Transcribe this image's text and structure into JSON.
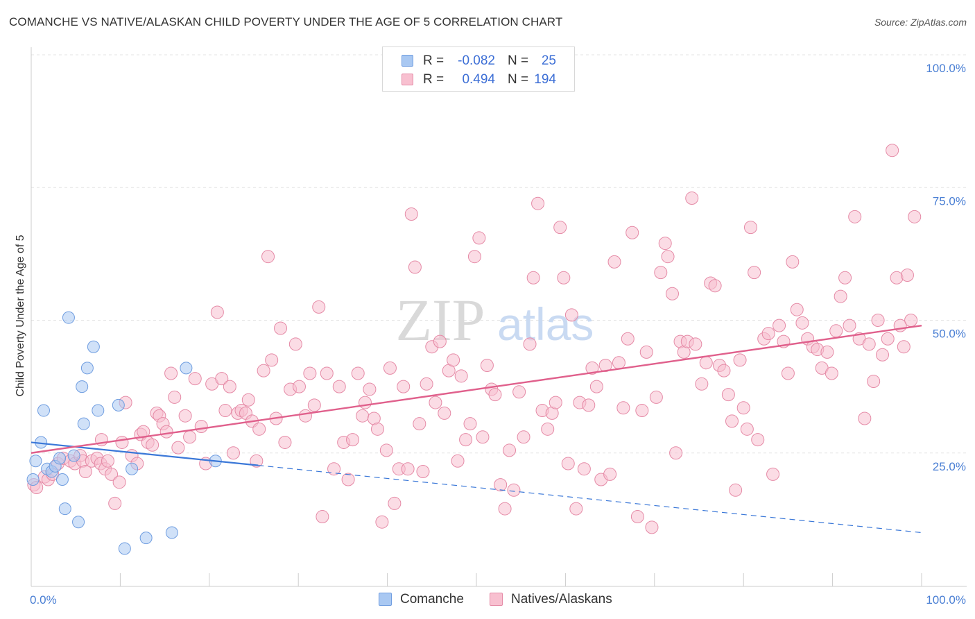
{
  "header": {
    "title": "COMANCHE VS NATIVE/ALASKAN CHILD POVERTY UNDER THE AGE OF 5 CORRELATION CHART",
    "source": "Source: ZipAtlas.com"
  },
  "watermark": {
    "zip": "ZIP",
    "atlas": "atlas"
  },
  "legend": {
    "r_label": "R =",
    "n_label": "N =",
    "rows": [
      {
        "name": "Comanche",
        "r": "-0.082",
        "n": "25",
        "color": "#a9c8f2",
        "stroke": "#6f9de0"
      },
      {
        "name": "Natives/Alaskans",
        "r": "0.494",
        "n": "194",
        "color": "#f8c0d0",
        "stroke": "#e58aa6"
      }
    ]
  },
  "chart_data": {
    "type": "scatter",
    "title": "COMANCHE VS NATIVE/ALASKAN CHILD POVERTY UNDER THE AGE OF 5 CORRELATION CHART",
    "xlabel": "",
    "ylabel": "Child Poverty Under the Age of 5",
    "xlim": [
      0,
      100
    ],
    "ylim": [
      0,
      100
    ],
    "x_tick_labels": [
      "0.0%",
      "100.0%"
    ],
    "y_tick_labels": [
      {
        "value": 100,
        "label": "100.0%"
      },
      {
        "value": 75,
        "label": "75.0%"
      },
      {
        "value": 50,
        "label": "50.0%"
      },
      {
        "value": 25,
        "label": "25.0%"
      }
    ],
    "grid": true,
    "legend_position": "top-center",
    "series": [
      {
        "name": "Comanche",
        "color": "#a9c8f2",
        "stroke": "#6f9de0",
        "line_color": "#3b78d8",
        "trend": {
          "x": [
            0,
            100
          ],
          "y": [
            27.0,
            10.0
          ],
          "solid_until": 25.5
        },
        "points": [
          [
            0.2,
            20.0
          ],
          [
            0.5,
            23.5
          ],
          [
            1.1,
            27.0
          ],
          [
            1.4,
            33.0
          ],
          [
            1.8,
            22.0
          ],
          [
            2.3,
            21.5
          ],
          [
            2.7,
            22.5
          ],
          [
            3.2,
            24.0
          ],
          [
            3.5,
            20.0
          ],
          [
            3.8,
            14.5
          ],
          [
            4.2,
            50.5
          ],
          [
            4.8,
            24.5
          ],
          [
            5.3,
            12.0
          ],
          [
            5.7,
            37.5
          ],
          [
            5.9,
            30.5
          ],
          [
            6.3,
            41.0
          ],
          [
            7.0,
            45.0
          ],
          [
            7.5,
            33.0
          ],
          [
            9.8,
            34.0
          ],
          [
            10.5,
            7.0
          ],
          [
            11.3,
            22.0
          ],
          [
            12.9,
            9.0
          ],
          [
            15.8,
            10.0
          ],
          [
            17.4,
            41.0
          ],
          [
            20.7,
            23.5
          ]
        ]
      },
      {
        "name": "Natives/Alaskans",
        "color": "#f8c0d0",
        "stroke": "#e58aa6",
        "line_color": "#e0608c",
        "trend": {
          "x": [
            0,
            100
          ],
          "y": [
            25.0,
            49.0
          ]
        },
        "points": [
          [
            0.3,
            19.0
          ],
          [
            0.6,
            18.5
          ],
          [
            1.5,
            20.5
          ],
          [
            1.9,
            20.0
          ],
          [
            2.4,
            21.0
          ],
          [
            3.0,
            23.0
          ],
          [
            3.6,
            24.0
          ],
          [
            4.4,
            23.5
          ],
          [
            4.9,
            23.0
          ],
          [
            5.5,
            24.5
          ],
          [
            5.8,
            23.5
          ],
          [
            6.1,
            21.5
          ],
          [
            6.8,
            23.5
          ],
          [
            7.4,
            24.0
          ],
          [
            7.8,
            23.0
          ],
          [
            7.9,
            27.5
          ],
          [
            8.3,
            22.0
          ],
          [
            8.6,
            23.5
          ],
          [
            9.0,
            21.0
          ],
          [
            9.4,
            15.5
          ],
          [
            9.9,
            19.5
          ],
          [
            10.2,
            27.0
          ],
          [
            10.6,
            34.5
          ],
          [
            11.3,
            24.5
          ],
          [
            11.9,
            23.0
          ],
          [
            12.3,
            28.5
          ],
          [
            12.6,
            29.0
          ],
          [
            13.1,
            27.0
          ],
          [
            13.6,
            26.5
          ],
          [
            14.1,
            32.5
          ],
          [
            14.4,
            32.0
          ],
          [
            14.8,
            30.5
          ],
          [
            15.2,
            29.0
          ],
          [
            15.7,
            40.0
          ],
          [
            16.1,
            35.5
          ],
          [
            16.5,
            26.0
          ],
          [
            17.3,
            32.0
          ],
          [
            17.8,
            28.0
          ],
          [
            18.4,
            39.0
          ],
          [
            19.1,
            30.0
          ],
          [
            19.6,
            23.0
          ],
          [
            20.3,
            38.0
          ],
          [
            20.9,
            51.5
          ],
          [
            21.4,
            39.0
          ],
          [
            21.8,
            33.0
          ],
          [
            22.3,
            37.5
          ],
          [
            22.7,
            25.0
          ],
          [
            23.2,
            32.5
          ],
          [
            23.6,
            33.0
          ],
          [
            24.1,
            32.5
          ],
          [
            24.4,
            35.0
          ],
          [
            24.8,
            31.0
          ],
          [
            25.3,
            23.5
          ],
          [
            25.6,
            29.5
          ],
          [
            26.1,
            40.5
          ],
          [
            26.6,
            62.0
          ],
          [
            27.0,
            42.5
          ],
          [
            27.5,
            31.5
          ],
          [
            28.0,
            48.5
          ],
          [
            28.5,
            27.0
          ],
          [
            29.1,
            37.0
          ],
          [
            29.7,
            45.5
          ],
          [
            30.1,
            37.5
          ],
          [
            30.8,
            32.0
          ],
          [
            31.3,
            40.0
          ],
          [
            31.8,
            34.0
          ],
          [
            32.3,
            52.5
          ],
          [
            32.7,
            13.0
          ],
          [
            33.2,
            40.0
          ],
          [
            34.0,
            22.0
          ],
          [
            34.6,
            37.5
          ],
          [
            35.1,
            27.0
          ],
          [
            35.6,
            20.0
          ],
          [
            36.1,
            27.5
          ],
          [
            36.7,
            40.0
          ],
          [
            37.2,
            32.0
          ],
          [
            37.5,
            34.5
          ],
          [
            38.0,
            37.0
          ],
          [
            38.5,
            31.5
          ],
          [
            38.9,
            29.5
          ],
          [
            39.4,
            12.0
          ],
          [
            39.9,
            25.5
          ],
          [
            40.3,
            41.0
          ],
          [
            40.8,
            15.5
          ],
          [
            41.3,
            22.0
          ],
          [
            41.8,
            37.5
          ],
          [
            42.3,
            22.0
          ],
          [
            42.7,
            70.0
          ],
          [
            43.1,
            60.0
          ],
          [
            43.6,
            30.5
          ],
          [
            44.0,
            21.5
          ],
          [
            44.4,
            38.0
          ],
          [
            45.0,
            45.0
          ],
          [
            45.4,
            34.5
          ],
          [
            45.9,
            46.0
          ],
          [
            46.4,
            32.5
          ],
          [
            46.9,
            40.5
          ],
          [
            47.4,
            42.5
          ],
          [
            47.9,
            23.5
          ],
          [
            48.3,
            39.5
          ],
          [
            48.8,
            27.5
          ],
          [
            49.3,
            30.5
          ],
          [
            49.8,
            62.0
          ],
          [
            50.3,
            65.5
          ],
          [
            50.7,
            28.0
          ],
          [
            51.2,
            41.5
          ],
          [
            51.7,
            37.0
          ],
          [
            52.1,
            36.0
          ],
          [
            52.7,
            19.0
          ],
          [
            53.2,
            14.5
          ],
          [
            53.7,
            25.5
          ],
          [
            54.2,
            18.0
          ],
          [
            54.8,
            36.5
          ],
          [
            55.3,
            28.0
          ],
          [
            56.0,
            45.5
          ],
          [
            56.4,
            58.0
          ],
          [
            56.9,
            72.0
          ],
          [
            57.4,
            33.0
          ],
          [
            58.0,
            29.5
          ],
          [
            58.5,
            32.5
          ],
          [
            58.9,
            34.5
          ],
          [
            59.4,
            67.5
          ],
          [
            59.8,
            58.0
          ],
          [
            60.3,
            23.0
          ],
          [
            60.7,
            51.0
          ],
          [
            61.2,
            14.5
          ],
          [
            61.6,
            34.5
          ],
          [
            62.1,
            22.0
          ],
          [
            62.6,
            34.0
          ],
          [
            63.0,
            41.0
          ],
          [
            63.5,
            37.5
          ],
          [
            64.0,
            20.0
          ],
          [
            64.5,
            41.5
          ],
          [
            65.0,
            21.0
          ],
          [
            65.5,
            61.0
          ],
          [
            66.0,
            42.0
          ],
          [
            66.5,
            33.5
          ],
          [
            67.0,
            46.5
          ],
          [
            67.5,
            66.5
          ],
          [
            68.1,
            13.0
          ],
          [
            68.6,
            33.0
          ],
          [
            69.1,
            44.0
          ],
          [
            69.7,
            11.0
          ],
          [
            70.2,
            35.5
          ],
          [
            70.7,
            59.0
          ],
          [
            71.2,
            64.5
          ],
          [
            71.5,
            62.0
          ],
          [
            72.0,
            55.0
          ],
          [
            72.4,
            25.0
          ],
          [
            72.9,
            46.0
          ],
          [
            73.3,
            44.0
          ],
          [
            73.7,
            46.0
          ],
          [
            74.2,
            73.0
          ],
          [
            74.6,
            45.5
          ],
          [
            75.3,
            38.0
          ],
          [
            75.8,
            42.0
          ],
          [
            76.3,
            57.0
          ],
          [
            76.8,
            56.5
          ],
          [
            77.3,
            41.5
          ],
          [
            77.8,
            40.5
          ],
          [
            78.3,
            36.0
          ],
          [
            78.7,
            31.0
          ],
          [
            79.1,
            18.0
          ],
          [
            79.6,
            42.5
          ],
          [
            80.0,
            33.5
          ],
          [
            80.4,
            29.5
          ],
          [
            80.8,
            67.5
          ],
          [
            81.2,
            59.0
          ],
          [
            81.6,
            27.5
          ],
          [
            82.3,
            46.5
          ],
          [
            82.8,
            47.5
          ],
          [
            83.3,
            21.0
          ],
          [
            84.0,
            49.0
          ],
          [
            84.5,
            46.0
          ],
          [
            85.0,
            40.0
          ],
          [
            85.5,
            61.0
          ],
          [
            86.0,
            52.0
          ],
          [
            86.6,
            49.5
          ],
          [
            87.2,
            46.5
          ],
          [
            87.8,
            45.0
          ],
          [
            88.3,
            44.5
          ],
          [
            88.8,
            41.0
          ],
          [
            89.4,
            44.0
          ],
          [
            89.9,
            40.0
          ],
          [
            90.4,
            48.0
          ],
          [
            90.9,
            54.5
          ],
          [
            91.4,
            58.0
          ],
          [
            91.9,
            49.0
          ],
          [
            92.5,
            69.5
          ],
          [
            93.0,
            46.5
          ],
          [
            93.6,
            31.5
          ],
          [
            94.1,
            45.5
          ],
          [
            94.6,
            38.5
          ],
          [
            95.1,
            50.0
          ],
          [
            95.6,
            43.5
          ],
          [
            96.2,
            46.5
          ],
          [
            96.7,
            82.0
          ],
          [
            97.2,
            58.0
          ],
          [
            97.6,
            49.0
          ],
          [
            98.0,
            45.0
          ],
          [
            98.4,
            58.5
          ],
          [
            98.8,
            50.0
          ],
          [
            99.2,
            69.5
          ]
        ]
      }
    ]
  }
}
